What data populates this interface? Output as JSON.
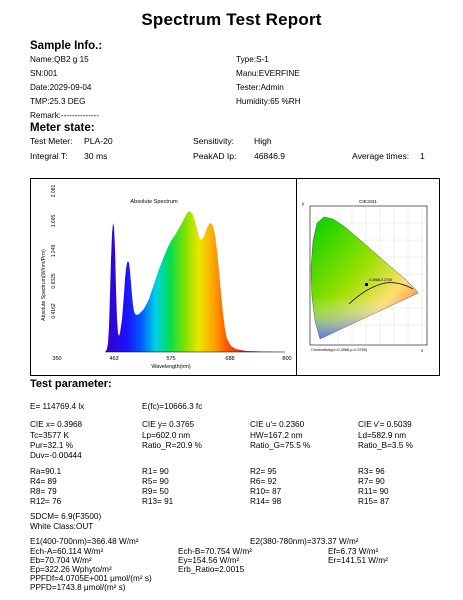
{
  "report": {
    "title": "Spectrum Test Report"
  },
  "sample_info": {
    "heading": "Sample Info.:",
    "name": "Name:QB2  g  15",
    "type": "Type:S-1",
    "sn": "SN:001",
    "manu": "Manu:EVERFINE",
    "date": "Date:2029-09-04",
    "tester": "Tester:Admin",
    "tmp": "TMP:25.3 DEG",
    "humidity": "Humidity:65 %RH",
    "remark": "Remark:--------------"
  },
  "meter_state": {
    "heading": "Meter state:",
    "test_meter_label": "Test Meter:",
    "test_meter_value": "PLA-20",
    "sensitivity_label": "Sensitivity:",
    "sensitivity_value": "High",
    "integral_label": "Integral T:",
    "integral_value": "30 ms",
    "peakad_label": "PeakAD Ip:",
    "peakad_value": "46846.9",
    "avg_label": "Average times:",
    "avg_value": "1"
  },
  "spectrum_chart": {
    "title": "Absolute Spectrum",
    "ylabel": "Absolute Spectrum(W/nm/Prm)",
    "xlabel": "Wavelength(nm)",
    "y_ticks": [
      "0.4162",
      "0.8325",
      "1.249",
      "1.665",
      "2.081"
    ],
    "x_ticks": [
      "350",
      "463",
      "575",
      "688",
      "800"
    ]
  },
  "cie_chart": {
    "title": "CIE1931",
    "x_axis_label": "x",
    "y_axis_label": "y",
    "caption": "Chromaticity(x=0.3968,y=0.3765)",
    "marker_label": "0.3968,0.3765"
  },
  "test_parameter": {
    "heading": "Test parameter:",
    "e": "E=  114769.4 lx",
    "efc": "E(fc)=10666.3 fc",
    "ciex": "CIE x= 0.3968",
    "ciey": "CIE y= 0.3765",
    "cieu": "CIE u'= 0.2360",
    "ciev": "CIE v'= 0.5039",
    "tc": "Tc=3577 K",
    "lp": "Lp=602.0 nm",
    "hw": "HW=167.2 nm",
    "ld": "Ld=582.9 nm",
    "pur": "Pur=32.1 %",
    "ratio_r": "Ratio_R=20.9 %",
    "ratio_g": "Ratio_G=75.5 %",
    "ratio_b": "Ratio_B=3.5 %",
    "duv": "Duv=-0.00444",
    "ra": "Ra=90.1",
    "r1": "R1= 90",
    "r2": "R2= 95",
    "r3": "R3= 96",
    "r4": "R4= 89",
    "r5": "R5= 90",
    "r6": "R6= 92",
    "r7": "R7= 90",
    "r8": "R8= 79",
    "r9": "R9= 50",
    "r10": "R10= 87",
    "r11": "R11= 90",
    "r12": "R12= 76",
    "r13": "R13= 91",
    "r14": "R14= 98",
    "r15": "R15= 87",
    "sdcm": "SDCM= 6.9(F3500)",
    "white_class": "White Class:OUT",
    "e1": "E1(400-700nm)=366.48 W/m²",
    "e2": "E2(380-780nm)=373.37 W/m²",
    "ech_a": "Ech-A=60.114 W/m²",
    "ech_b": "Ech-B=70.754 W/m²",
    "ef": "Ef=6.73 W/m²",
    "eb": "Eb=70.704 W/m²",
    "ey": "Ey=154.56 W/m²",
    "er": "Er=141.51 W/m²",
    "ep": "Ep=322.26 Wphyto/m²",
    "erb": "Erb_Ratio=2.0015",
    "ppfdf": "PPFDf=4.0705E+001 μmol/(m² s)",
    "ppfd": "PPFD=1743.8 μmol/(m² s)"
  }
}
